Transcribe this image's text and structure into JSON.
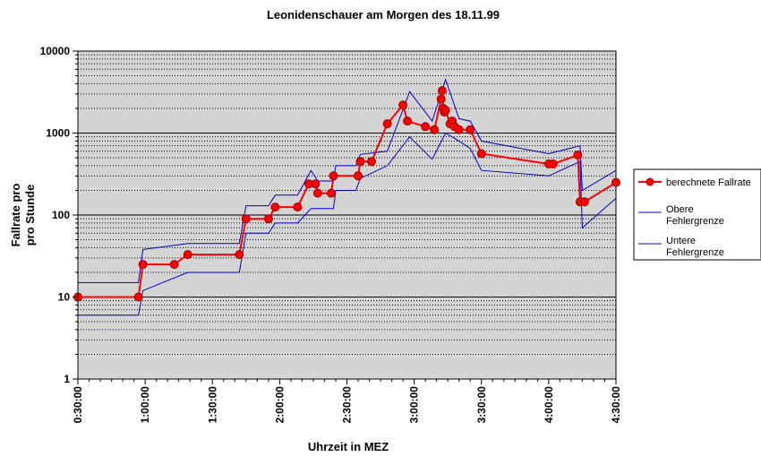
{
  "chart_data": {
    "type": "line",
    "title": "Leonidenschauer am Morgen des 18.11.99",
    "xlabel": "Uhrzeit in MEZ",
    "ylabel_lines": [
      "Fallrate pro",
      "pro Stunde"
    ],
    "y_scale": "log",
    "ylim": [
      1,
      10000
    ],
    "y_ticks": [
      "1",
      "10",
      "100",
      "1000",
      "10000"
    ],
    "xlim": [
      "0:30:00",
      "4:30:00"
    ],
    "x_ticks": [
      "0:30:00",
      "1:00:00",
      "1:30:00",
      "2:00:00",
      "2:30:00",
      "3:00:00",
      "3:30:00",
      "4:00:00",
      "4:30:00"
    ],
    "grid": true,
    "legend_position": "right",
    "colors": {
      "plot_background": "#d4d4d4",
      "rate": "#ff0000",
      "upper": "#0000cc",
      "lower": "#0000cc"
    },
    "series": [
      {
        "name": "berechnete Fallrate",
        "x": [
          "0:30:00",
          "0:57:00",
          "0:59:00",
          "1:13:00",
          "1:19:00",
          "1:42:00",
          "1:45:00",
          "1:55:00",
          "1:58:00",
          "2:08:00",
          "2:13:00",
          "2:16:00",
          "2:17:00",
          "2:23:00",
          "2:24:00",
          "2:35:00",
          "2:36:00",
          "2:41:00",
          "2:48:00",
          "2:55:00",
          "2:57:00",
          "3:05:00",
          "3:09:00",
          "3:12:00",
          "3:12:30",
          "3:13:00",
          "3:13:30",
          "3:14:00",
          "3:16:00",
          "3:17:00",
          "3:18:00",
          "3:20:00",
          "3:25:00",
          "3:30:00",
          "4:00:00",
          "4:02:00",
          "4:13:00",
          "4:14:00",
          "4:16:00",
          "4:30:00"
        ],
        "values": [
          10,
          10,
          25,
          25,
          33,
          33,
          90,
          90,
          125,
          125,
          240,
          240,
          185,
          185,
          300,
          300,
          450,
          450,
          1300,
          2200,
          1400,
          1200,
          1100,
          2600,
          3300,
          2000,
          1800,
          1900,
          1300,
          1400,
          1200,
          1100,
          1100,
          560,
          420,
          420,
          540,
          145,
          145,
          250
        ]
      },
      {
        "name": "Obere Fehlergrenze",
        "x": [
          "0:30:00",
          "0:57:00",
          "0:59:00",
          "1:19:00",
          "1:42:00",
          "1:45:00",
          "1:55:00",
          "1:58:00",
          "2:08:00",
          "2:14:00",
          "2:17:00",
          "2:24:00",
          "2:25:00",
          "2:34:00",
          "2:36:00",
          "2:48:00",
          "2:58:00",
          "3:08:00",
          "3:14:00",
          "3:20:00",
          "3:25:00",
          "3:30:00",
          "4:00:00",
          "4:14:00",
          "4:15:00",
          "4:30:00"
        ],
        "values": [
          15,
          15,
          38,
          45,
          45,
          130,
          130,
          175,
          175,
          350,
          260,
          260,
          400,
          400,
          550,
          600,
          3200,
          1400,
          4500,
          1500,
          1400,
          800,
          560,
          700,
          200,
          350
        ]
      },
      {
        "name": "Untere Fehlergrenze",
        "x": [
          "0:30:00",
          "0:57:00",
          "0:59:00",
          "1:19:00",
          "1:42:00",
          "1:45:00",
          "1:55:00",
          "1:58:00",
          "2:08:00",
          "2:14:00",
          "2:17:00",
          "2:24:00",
          "2:25:00",
          "2:34:00",
          "2:36:00",
          "2:48:00",
          "2:58:00",
          "3:08:00",
          "3:14:00",
          "3:20:00",
          "3:25:00",
          "3:30:00",
          "4:00:00",
          "4:14:00",
          "4:15:00",
          "4:30:00"
        ],
        "values": [
          6,
          6,
          12,
          20,
          20,
          60,
          60,
          80,
          80,
          120,
          120,
          120,
          200,
          200,
          280,
          400,
          900,
          480,
          1000,
          800,
          650,
          350,
          300,
          450,
          70,
          160
        ]
      }
    ]
  }
}
